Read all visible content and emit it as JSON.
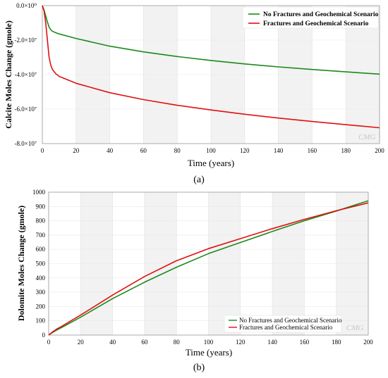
{
  "chart_data": [
    {
      "type": "line",
      "caption": "(a)",
      "xlabel": "Time (years)",
      "ylabel": "Calcite Moles Change  (gmole)",
      "xlim": [
        0,
        200
      ],
      "ylim": [
        -80000000,
        0
      ],
      "x_ticks": [
        "0",
        "20",
        "40",
        "60",
        "80",
        "100",
        "120",
        "140",
        "160",
        "180",
        "200"
      ],
      "y_ticks": [
        "0.0×10⁰",
        "-2.0×10⁷",
        "-4.0×10⁷",
        "-6.0×10⁷",
        "-8.0×10⁷"
      ],
      "legend_position": "top-right",
      "watermark": "CMG",
      "series": [
        {
          "name": "No Fractures and Geochemical Scenario",
          "color": "#1a8a1a",
          "x": [
            0,
            1,
            2,
            3,
            4,
            5,
            6,
            8,
            10,
            20,
            40,
            60,
            80,
            100,
            120,
            140,
            160,
            180,
            200
          ],
          "y": [
            0,
            -2500000,
            -6000000,
            -9500000,
            -12500000,
            -14000000,
            -14800000,
            -15700000,
            -16400000,
            -19000000,
            -23500000,
            -26800000,
            -29500000,
            -31800000,
            -33800000,
            -35500000,
            -37000000,
            -38400000,
            -39700000
          ]
        },
        {
          "name": "Fractures and Geochemical Scenario",
          "color": "#e01010",
          "x": [
            0,
            1,
            2,
            3,
            4,
            5,
            6,
            8,
            10,
            20,
            40,
            60,
            80,
            100,
            120,
            140,
            160,
            180,
            200
          ],
          "y": [
            0,
            -3000000,
            -10000000,
            -20000000,
            -30000000,
            -34500000,
            -37000000,
            -39500000,
            -41000000,
            -45000000,
            -50500000,
            -54500000,
            -57800000,
            -60500000,
            -63000000,
            -65200000,
            -67200000,
            -69000000,
            -70800000
          ]
        }
      ]
    },
    {
      "type": "line",
      "caption": "(b)",
      "xlabel": "Time (years)",
      "ylabel": "Dolomite Moles Change  (gmole)",
      "xlim": [
        0,
        200
      ],
      "ylim": [
        0,
        1000
      ],
      "x_ticks": [
        "0",
        "20",
        "40",
        "60",
        "80",
        "100",
        "120",
        "140",
        "160",
        "180",
        "200"
      ],
      "y_ticks": [
        "0",
        "100",
        "200",
        "300",
        "400",
        "500",
        "600",
        "700",
        "800",
        "900",
        "1000"
      ],
      "legend_position": "bottom-right",
      "watermark": "CMG",
      "series": [
        {
          "name": "No Fractures and Geochemical Scenario",
          "color": "#1a8a1a",
          "x": [
            0,
            2,
            5,
            8,
            20,
            40,
            60,
            80,
            100,
            120,
            140,
            160,
            180,
            200
          ],
          "y": [
            0,
            15,
            35,
            52,
            125,
            255,
            370,
            475,
            570,
            648,
            725,
            800,
            868,
            940
          ]
        },
        {
          "name": "Fractures and Geochemical Scenario",
          "color": "#e01010",
          "x": [
            0,
            2,
            5,
            8,
            20,
            40,
            60,
            80,
            100,
            120,
            140,
            160,
            180,
            200
          ],
          "y": [
            0,
            18,
            42,
            60,
            140,
            280,
            410,
            520,
            605,
            675,
            745,
            810,
            870,
            925
          ]
        }
      ]
    }
  ]
}
